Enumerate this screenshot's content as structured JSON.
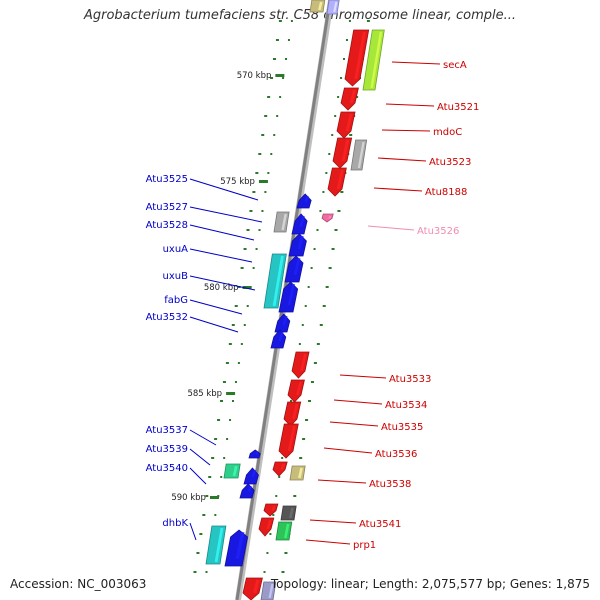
{
  "title": "Agrobacterium tumefaciens str. C58 chromosome linear, comple...",
  "footer": {
    "accession": "Accession: NC_003063",
    "topology": "Topology: linear; Length: 2,075,577 bp; Genes: 1,875"
  },
  "colors": {
    "forward_label": "#0000c8",
    "reverse_label": "#cc0000",
    "pseudo_label": "#f08cb4",
    "backbone": "#808080",
    "tick": "#2a7a2a"
  },
  "ticks": [
    "570 kbp",
    "575 kbp",
    "580 kbp",
    "585 kbp",
    "590 kbp"
  ],
  "labels": {
    "left": [
      "Atu3525",
      "Atu3527",
      "Atu3528",
      "uxuA",
      "uxuB",
      "fabG",
      "Atu3532",
      "Atu3537",
      "Atu3539",
      "Atu3540",
      "dhbK"
    ],
    "right": [
      "secA",
      "Atu3521",
      "mdoC",
      "Atu3523",
      "Atu8188",
      "Atu3526",
      "Atu3533",
      "Atu3534",
      "Atu3535",
      "Atu3536",
      "Atu3538",
      "Atu3541",
      "prp1"
    ]
  }
}
